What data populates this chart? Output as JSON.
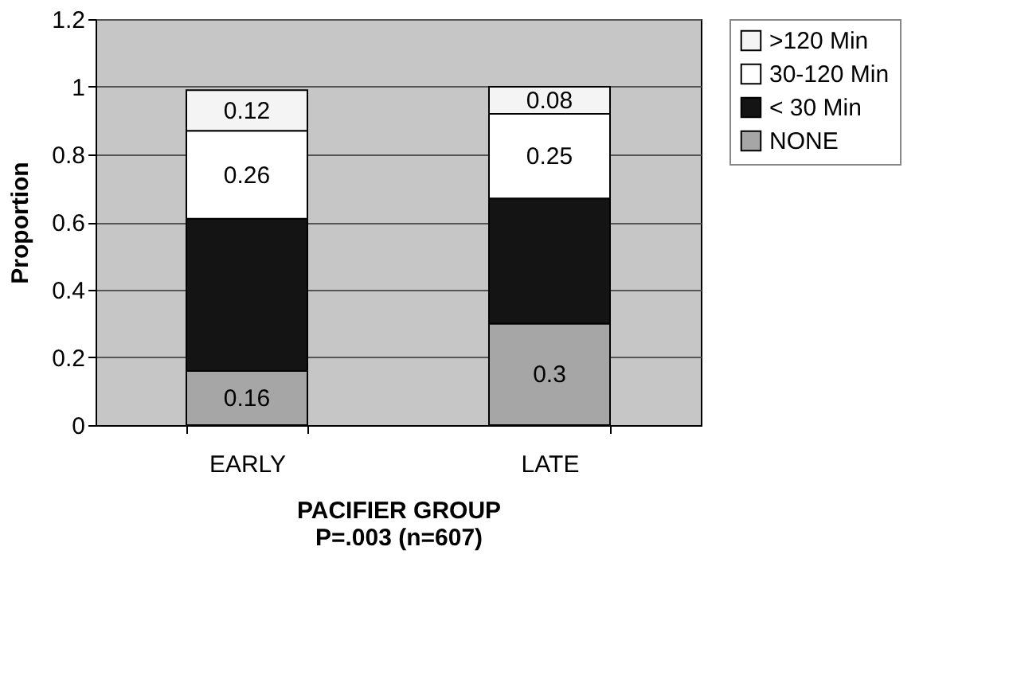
{
  "chart_data": {
    "type": "bar",
    "stacked": true,
    "categories": [
      "EARLY",
      "LATE"
    ],
    "series": [
      {
        "name": "NONE",
        "color": "#a6a6a6",
        "values": [
          0.16,
          0.3
        ],
        "value_labels": [
          "0.16",
          "0.3"
        ]
      },
      {
        "name": "< 30 Min",
        "color": "#141414",
        "values": [
          0.45,
          0.37
        ],
        "value_labels": [
          null,
          null
        ]
      },
      {
        "name": "30-120 Min",
        "color": "#ffffff",
        "values": [
          0.26,
          0.25
        ],
        "value_labels": [
          "0.26",
          "0.25"
        ]
      },
      {
        "name": ">120 Min",
        "color": "#f4f4f4",
        "values": [
          0.12,
          0.08
        ],
        "value_labels": [
          "0.12",
          "0.08"
        ]
      }
    ],
    "ylabel": "Proportion",
    "xlabel": "PACIFIER GROUP",
    "annotations": [
      "P=.003 (n=607)"
    ],
    "ylim": [
      0,
      1.2
    ],
    "yticks": [
      0,
      0.2,
      0.4,
      0.6,
      0.8,
      1,
      1.2
    ],
    "grid": "y",
    "legend": "right"
  }
}
